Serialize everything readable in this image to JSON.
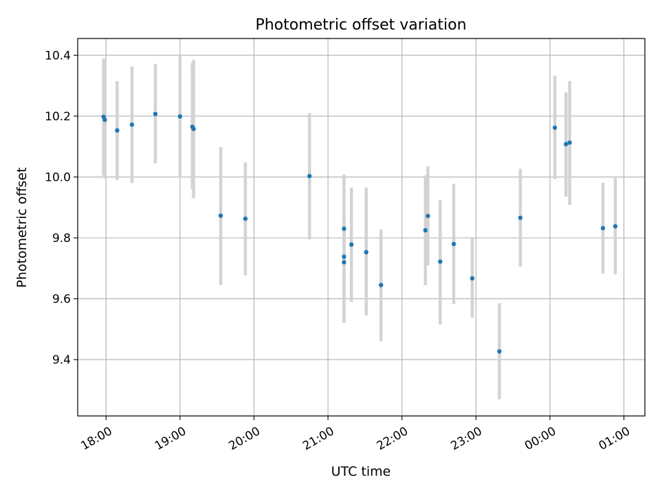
{
  "chart_data": {
    "type": "scatter",
    "title": "Photometric offset variation",
    "xlabel": "UTC time",
    "ylabel": "Photometric offset",
    "ylim": [
      9.215,
      10.455
    ],
    "xlim": [
      "17:37",
      "01:17"
    ],
    "yticks": [
      "9.4",
      "9.6",
      "9.8",
      "10.0",
      "10.2",
      "10.4"
    ],
    "xticks": [
      "18:00",
      "19:00",
      "20:00",
      "21:00",
      "22:00",
      "23:00",
      "00:00",
      "01:00"
    ],
    "grid": true,
    "error_bars": true,
    "series": [
      {
        "points": [
          {
            "x": "17:58",
            "y": 10.198,
            "err_low": 10.005,
            "err_high": 10.39
          },
          {
            "x": "17:59",
            "y": 10.188,
            "err_low": 9.995,
            "err_high": 10.385
          },
          {
            "x": "18:09",
            "y": 10.153,
            "err_low": 9.99,
            "err_high": 10.315
          },
          {
            "x": "18:21",
            "y": 10.172,
            "err_low": 9.98,
            "err_high": 10.363
          },
          {
            "x": "18:40",
            "y": 10.207,
            "err_low": 10.045,
            "err_high": 10.372
          },
          {
            "x": "19:00",
            "y": 10.199,
            "err_low": 10.0,
            "err_high": 10.4
          },
          {
            "x": "19:10",
            "y": 10.165,
            "err_low": 9.96,
            "err_high": 10.375
          },
          {
            "x": "19:11",
            "y": 10.158,
            "err_low": 9.93,
            "err_high": 10.385
          },
          {
            "x": "19:33",
            "y": 9.873,
            "err_low": 9.645,
            "err_high": 10.098
          },
          {
            "x": "19:53",
            "y": 9.863,
            "err_low": 9.677,
            "err_high": 10.048
          },
          {
            "x": "20:45",
            "y": 10.003,
            "err_low": 9.795,
            "err_high": 10.21
          },
          {
            "x": "21:13",
            "y": 9.83,
            "err_low": 9.655,
            "err_high": 10.008
          },
          {
            "x": "21:13",
            "y": 9.738,
            "err_low": 9.52,
            "err_high": 9.86
          },
          {
            "x": "21:13",
            "y": 9.72,
            "err_low": 9.52,
            "err_high": 9.86
          },
          {
            "x": "21:19",
            "y": 9.778,
            "err_low": 9.59,
            "err_high": 9.965
          },
          {
            "x": "21:31",
            "y": 9.753,
            "err_low": 9.545,
            "err_high": 9.965
          },
          {
            "x": "21:43",
            "y": 9.645,
            "err_low": 9.46,
            "err_high": 9.828
          },
          {
            "x": "22:19",
            "y": 9.825,
            "err_low": 9.645,
            "err_high": 10.005
          },
          {
            "x": "22:21",
            "y": 9.872,
            "err_low": 9.71,
            "err_high": 10.035
          },
          {
            "x": "22:31",
            "y": 9.722,
            "err_low": 9.515,
            "err_high": 9.925
          },
          {
            "x": "22:42",
            "y": 9.78,
            "err_low": 9.583,
            "err_high": 9.978
          },
          {
            "x": "22:57",
            "y": 9.667,
            "err_low": 9.537,
            "err_high": 9.8
          },
          {
            "x": "23:19",
            "y": 9.427,
            "err_low": 9.27,
            "err_high": 9.585
          },
          {
            "x": "23:36",
            "y": 9.866,
            "err_low": 9.705,
            "err_high": 10.027
          },
          {
            "x": "00:04",
            "y": 10.162,
            "err_low": 9.993,
            "err_high": 10.333
          },
          {
            "x": "00:13",
            "y": 10.108,
            "err_low": 9.935,
            "err_high": 10.278
          },
          {
            "x": "00:16",
            "y": 10.113,
            "err_low": 9.908,
            "err_high": 10.315
          },
          {
            "x": "00:43",
            "y": 9.832,
            "err_low": 9.682,
            "err_high": 9.981
          },
          {
            "x": "00:53",
            "y": 9.838,
            "err_low": 9.68,
            "err_high": 9.997
          }
        ]
      }
    ]
  },
  "colors": {
    "marker": "#1f77b4",
    "error_bar": "#d3d3d3",
    "grid": "#b0b0b0",
    "axes": "#000000"
  }
}
